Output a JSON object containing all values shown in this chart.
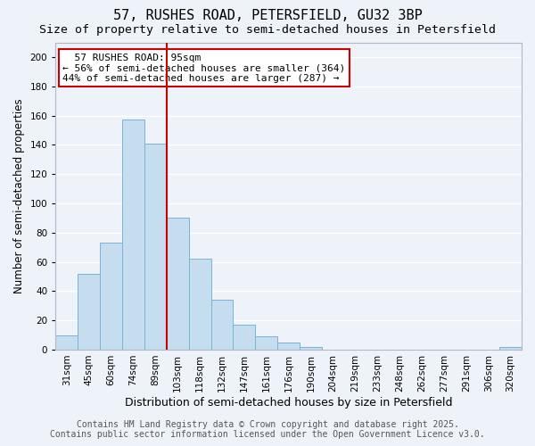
{
  "title": "57, RUSHES ROAD, PETERSFIELD, GU32 3BP",
  "subtitle": "Size of property relative to semi-detached houses in Petersfield",
  "xlabel": "Distribution of semi-detached houses by size in Petersfield",
  "ylabel": "Number of semi-detached properties",
  "bar_labels": [
    "31sqm",
    "45sqm",
    "60sqm",
    "74sqm",
    "89sqm",
    "103sqm",
    "118sqm",
    "132sqm",
    "147sqm",
    "161sqm",
    "176sqm",
    "190sqm",
    "204sqm",
    "219sqm",
    "233sqm",
    "248sqm",
    "262sqm",
    "277sqm",
    "291sqm",
    "306sqm",
    "320sqm"
  ],
  "bar_heights": [
    10,
    52,
    73,
    157,
    141,
    90,
    62,
    34,
    17,
    9,
    5,
    2,
    0,
    0,
    0,
    0,
    0,
    0,
    0,
    0,
    2
  ],
  "bar_color": "#c5ddef",
  "bar_edge_color": "#7ab4d4",
  "vline_between": [
    4,
    5
  ],
  "vline_color": "#cc0000",
  "annotation_title": "57 RUSHES ROAD: 95sqm",
  "annotation_line1": "← 56% of semi-detached houses are smaller (364)",
  "annotation_line2": "44% of semi-detached houses are larger (287) →",
  "annotation_box_color": "#ffffff",
  "annotation_box_edge_color": "#cc0000",
  "ylim": [
    0,
    210
  ],
  "yticks": [
    0,
    20,
    40,
    60,
    80,
    100,
    120,
    140,
    160,
    180,
    200
  ],
  "footer_line1": "Contains HM Land Registry data © Crown copyright and database right 2025.",
  "footer_line2": "Contains public sector information licensed under the Open Government Licence v3.0.",
  "background_color": "#eef2f9",
  "grid_color": "#ffffff",
  "title_fontsize": 11,
  "subtitle_fontsize": 9.5,
  "xlabel_fontsize": 9,
  "ylabel_fontsize": 8.5,
  "tick_fontsize": 7.5,
  "annotation_fontsize": 8,
  "footer_fontsize": 7
}
